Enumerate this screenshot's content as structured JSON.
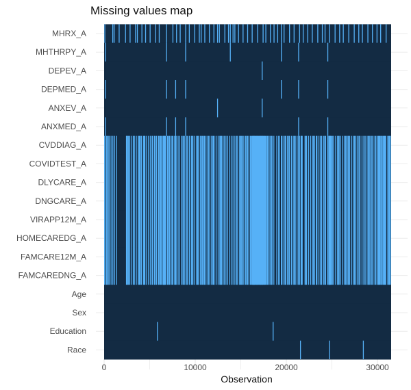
{
  "chart_data": {
    "type": "heatmap",
    "title": "Missing values map",
    "xlabel": "Observation",
    "ylabel": "",
    "xlim": [
      0,
      31500
    ],
    "x_ticks": [
      0,
      10000,
      20000,
      30000
    ],
    "x_tick_labels": [
      "0",
      "10000",
      "20000",
      "30000"
    ],
    "grid": true,
    "legend": "none",
    "colors": {
      "present": "#132b43",
      "missing": "#56b1f7",
      "grid": "#ebebeb"
    },
    "variables": [
      "MHRX_A",
      "MHTHRPY_A",
      "DEPEV_A",
      "DEPMED_A",
      "ANXEV_A",
      "ANXMED_A",
      "CVDDIAG_A",
      "COVIDTEST_A",
      "DLYCARE_A",
      "DNGCARE_A",
      "VIRAPP12M_A",
      "HOMECAREDG_A",
      "FAMCARE12M_A",
      "FAMCAREDNG_A",
      "Age",
      "Sex",
      "Education",
      "Race"
    ],
    "missing_observations": {
      "MHRX_A": [
        30,
        900,
        1050,
        1600,
        2300,
        2800,
        3400,
        3600,
        4100,
        4500,
        5000,
        5600,
        6000,
        6800,
        7500,
        7900,
        8300,
        8900,
        9300,
        9900,
        10400,
        10600,
        11000,
        11500,
        12000,
        12400,
        12600,
        13200,
        13600,
        13800,
        14100,
        14300,
        14700,
        15200,
        15700,
        16200,
        16800,
        17400,
        17700,
        18200,
        18600,
        19000,
        19400,
        19700,
        20300,
        20800,
        21400,
        21800,
        22300,
        22800,
        23400,
        23900,
        24200,
        24700,
        25300,
        25800,
        26200,
        26800,
        27400,
        27900,
        28300,
        28900,
        29400,
        29900,
        30300,
        30900
      ],
      "MHTHRPY_A": [
        100,
        6800,
        8900,
        13800,
        19400,
        21300,
        24500
      ],
      "DEPEV_A": [
        17300
      ],
      "DEPMED_A": [
        100,
        6800,
        7800,
        8900,
        19400,
        21300,
        24500
      ],
      "ANXEV_A": [
        12400,
        17300
      ],
      "ANXMED_A": [
        100,
        6800,
        7800,
        8900,
        21300,
        24500
      ],
      "CVDDIAG_A": [
        {
          "dense_segments": [
            [
              0,
              1500
            ],
            [
              2400,
              6200
            ],
            [
              6300,
              9800
            ],
            [
              9900,
              13400
            ],
            [
              13500,
              15600
            ],
            [
              15700,
              18700
            ],
            [
              18900,
              21800
            ],
            [
              22000,
              24900
            ],
            [
              25000,
              28500
            ],
            [
              28600,
              31400
            ]
          ],
          "solid_blocks": [
            [
              6450,
              6700
            ],
            [
              16200,
              17800
            ],
            [
              24600,
              24900
            ]
          ]
        }
      ],
      "COVIDTEST_A": "same as CVDDIAG_A",
      "DLYCARE_A": "same as CVDDIAG_A",
      "DNGCARE_A": "same as CVDDIAG_A",
      "VIRAPP12M_A": "same as CVDDIAG_A",
      "HOMECAREDG_A": "same as CVDDIAG_A",
      "FAMCARE12M_A": "same as CVDDIAG_A",
      "FAMCAREDNG_A": "same as CVDDIAG_A",
      "Age": [],
      "Sex": [],
      "Education": [
        5800,
        18500
      ],
      "Race": [
        21500,
        24700,
        28400
      ]
    }
  }
}
